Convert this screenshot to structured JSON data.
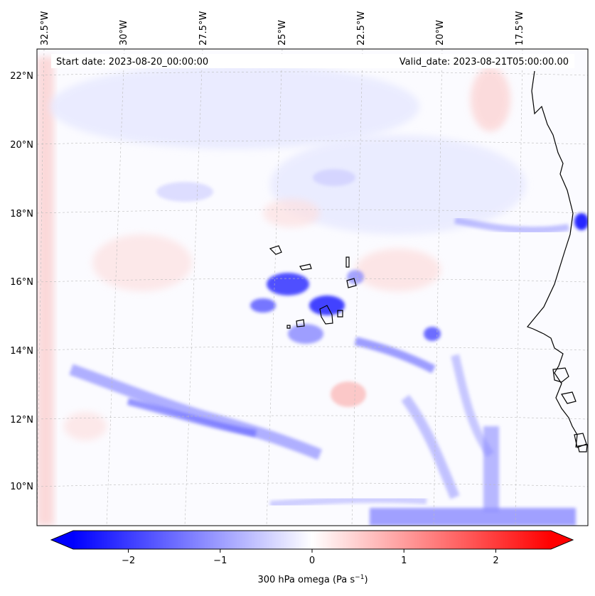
{
  "map": {
    "start_date_text": "Start date: 2023-08-20_00:00:00",
    "valid_date_text": "Valid_date: 2023-08-21T05:00:00.00",
    "lon_labels": [
      "32.5°W",
      "30°W",
      "27.5°W",
      "25°W",
      "22.5°W",
      "20°W",
      "17.5°W"
    ],
    "lat_labels": [
      "22°N",
      "20°N",
      "18°N",
      "16°N",
      "14°N",
      "12°N",
      "10°N"
    ],
    "field": "300 hPa omega",
    "region": "Cabo Verde and West African coast"
  },
  "colorbar": {
    "label": "300 hPa omega (Pa s",
    "label_exp": "−1",
    "label_close": ")",
    "ticks": [
      {
        "value": -2,
        "label": "−2"
      },
      {
        "value": -1,
        "label": "−1"
      },
      {
        "value": 0,
        "label": "0"
      },
      {
        "value": 1,
        "label": "1"
      },
      {
        "value": 2,
        "label": "2"
      }
    ],
    "range": [
      -2.6,
      2.6
    ],
    "colormap": "bwr",
    "colors": {
      "negative": "#0000ff",
      "zero": "#ffffff",
      "positive": "#ff0000"
    }
  }
}
